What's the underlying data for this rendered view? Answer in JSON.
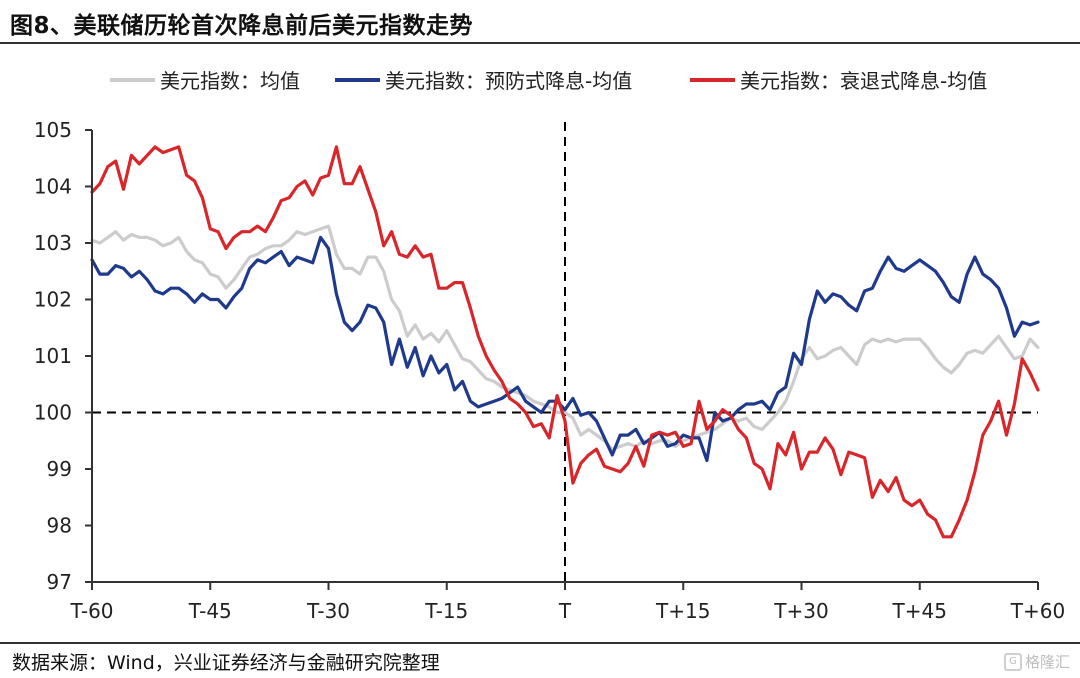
{
  "page": {
    "title": "图8、美联储历轮首次降息前后美元指数走势",
    "source": "数据来源：Wind，兴业证券经济与金融研究院整理",
    "watermark": "格隆汇"
  },
  "chart_data": {
    "type": "line",
    "title": "",
    "xlabel": "",
    "ylabel": "",
    "x_tick_labels": [
      "T-60",
      "T-45",
      "T-30",
      "T-15",
      "T",
      "T+15",
      "T+30",
      "T+45",
      "T+60"
    ],
    "x_tick_values": [
      -60,
      -45,
      -30,
      -15,
      0,
      15,
      30,
      45,
      60
    ],
    "xlim": [
      -60,
      60
    ],
    "ylim": [
      97,
      105
    ],
    "y_ticks": [
      97,
      98,
      99,
      100,
      101,
      102,
      103,
      104,
      105
    ],
    "grid": false,
    "legend_position": "top",
    "reference_lines": [
      {
        "axis": "x",
        "value": 0,
        "style": "dashed",
        "color": "#000000"
      },
      {
        "axis": "y",
        "value": 100,
        "style": "dashed",
        "color": "#000000"
      }
    ],
    "x": [
      -60,
      -59,
      -58,
      -57,
      -56,
      -55,
      -54,
      -53,
      -52,
      -51,
      -50,
      -49,
      -48,
      -47,
      -46,
      -45,
      -44,
      -43,
      -42,
      -41,
      -40,
      -39,
      -38,
      -37,
      -36,
      -35,
      -34,
      -33,
      -32,
      -31,
      -30,
      -29,
      -28,
      -27,
      -26,
      -25,
      -24,
      -23,
      -22,
      -21,
      -20,
      -19,
      -18,
      -17,
      -16,
      -15,
      -14,
      -13,
      -12,
      -11,
      -10,
      -9,
      -8,
      -7,
      -6,
      -5,
      -4,
      -3,
      -2,
      -1,
      0,
      1,
      2,
      3,
      4,
      5,
      6,
      7,
      8,
      9,
      10,
      11,
      12,
      13,
      14,
      15,
      16,
      17,
      18,
      19,
      20,
      21,
      22,
      23,
      24,
      25,
      26,
      27,
      28,
      29,
      30,
      31,
      32,
      33,
      34,
      35,
      36,
      37,
      38,
      39,
      40,
      41,
      42,
      43,
      44,
      45,
      46,
      47,
      48,
      49,
      50,
      51,
      52,
      53,
      54,
      55,
      56,
      57,
      58,
      59,
      60
    ],
    "series": [
      {
        "name": "美元指数：均值",
        "color": "#cccccc",
        "values": [
          103.05,
          103.0,
          103.1,
          103.2,
          103.05,
          103.15,
          103.1,
          103.1,
          103.05,
          102.95,
          103.0,
          103.1,
          102.85,
          102.7,
          102.65,
          102.45,
          102.4,
          102.2,
          102.35,
          102.55,
          102.75,
          102.8,
          102.9,
          102.95,
          102.95,
          103.05,
          103.2,
          103.15,
          103.2,
          103.25,
          103.3,
          102.8,
          102.55,
          102.55,
          102.45,
          102.75,
          102.75,
          102.5,
          102.0,
          101.8,
          101.35,
          101.55,
          101.3,
          101.4,
          101.25,
          101.45,
          101.2,
          100.95,
          100.9,
          100.75,
          100.6,
          100.55,
          100.45,
          100.4,
          100.35,
          100.3,
          100.2,
          100.15,
          100.1,
          100.0,
          100.0,
          99.9,
          99.6,
          99.7,
          99.6,
          99.5,
          99.35,
          99.4,
          99.45,
          99.4,
          99.5,
          99.45,
          99.5,
          99.5,
          99.4,
          99.5,
          99.55,
          99.6,
          99.65,
          99.7,
          99.8,
          99.9,
          99.85,
          99.9,
          99.75,
          99.7,
          99.85,
          100.0,
          100.2,
          100.55,
          100.95,
          101.15,
          100.95,
          101.0,
          101.1,
          101.15,
          101.0,
          100.85,
          101.2,
          101.3,
          101.25,
          101.3,
          101.25,
          101.3,
          101.3,
          101.3,
          101.15,
          100.95,
          100.8,
          100.7,
          100.85,
          101.05,
          101.1,
          101.05,
          101.2,
          101.35,
          101.15,
          100.95,
          101.0,
          101.3,
          101.15
        ]
      },
      {
        "name": "美元指数：预防式降息-均值",
        "color": "#1f3a8c",
        "values": [
          102.7,
          102.45,
          102.45,
          102.6,
          102.55,
          102.4,
          102.5,
          102.35,
          102.15,
          102.1,
          102.2,
          102.2,
          102.1,
          101.95,
          102.1,
          102.0,
          102.0,
          101.85,
          102.05,
          102.2,
          102.55,
          102.7,
          102.65,
          102.75,
          102.85,
          102.6,
          102.75,
          102.7,
          102.65,
          103.1,
          102.9,
          102.1,
          101.6,
          101.45,
          101.6,
          101.9,
          101.85,
          101.6,
          100.85,
          101.3,
          100.8,
          101.15,
          100.65,
          101.0,
          100.7,
          100.85,
          100.4,
          100.55,
          100.2,
          100.1,
          100.15,
          100.2,
          100.25,
          100.35,
          100.45,
          100.2,
          100.1,
          100.0,
          100.2,
          100.2,
          100.05,
          100.25,
          99.95,
          100.0,
          99.85,
          99.55,
          99.25,
          99.6,
          99.6,
          99.7,
          99.45,
          99.55,
          99.65,
          99.4,
          99.45,
          99.6,
          99.55,
          99.55,
          99.15,
          100.0,
          99.85,
          99.9,
          100.05,
          100.15,
          100.15,
          100.2,
          100.05,
          100.35,
          100.45,
          101.05,
          100.85,
          101.65,
          102.15,
          101.95,
          102.1,
          102.05,
          101.9,
          101.8,
          102.15,
          102.2,
          102.5,
          102.75,
          102.55,
          102.5,
          102.6,
          102.7,
          102.6,
          102.5,
          102.3,
          102.05,
          101.95,
          102.45,
          102.75,
          102.45,
          102.35,
          102.2,
          101.85,
          101.35,
          101.6,
          101.55,
          101.6
        ]
      },
      {
        "name": "美元指数：衰退式降息-均值",
        "color": "#d9262b",
        "values": [
          103.9,
          104.05,
          104.35,
          104.45,
          103.95,
          104.55,
          104.4,
          104.55,
          104.7,
          104.6,
          104.65,
          104.7,
          104.2,
          104.1,
          103.8,
          103.25,
          103.2,
          102.9,
          103.1,
          103.2,
          103.2,
          103.3,
          103.2,
          103.45,
          103.75,
          103.8,
          104.0,
          104.1,
          103.85,
          104.15,
          104.2,
          104.7,
          104.05,
          104.05,
          104.35,
          103.95,
          103.55,
          102.95,
          103.2,
          102.8,
          102.75,
          102.95,
          102.75,
          102.8,
          102.2,
          102.2,
          102.3,
          102.3,
          101.85,
          101.35,
          101.0,
          100.75,
          100.55,
          100.25,
          100.15,
          100.0,
          99.75,
          99.8,
          99.55,
          100.3,
          99.85,
          98.75,
          99.1,
          99.25,
          99.35,
          99.05,
          99.0,
          98.95,
          99.1,
          99.4,
          99.05,
          99.6,
          99.65,
          99.6,
          99.65,
          99.4,
          99.45,
          100.2,
          99.7,
          99.85,
          100.05,
          99.95,
          99.7,
          99.55,
          99.1,
          99.0,
          98.65,
          99.45,
          99.25,
          99.65,
          99.0,
          99.3,
          99.3,
          99.55,
          99.35,
          98.9,
          99.3,
          99.25,
          99.2,
          98.5,
          98.8,
          98.6,
          98.85,
          98.45,
          98.35,
          98.45,
          98.2,
          98.1,
          97.8,
          97.8,
          98.1,
          98.45,
          98.95,
          99.6,
          99.85,
          100.2,
          99.6,
          100.15,
          100.95,
          100.7,
          100.4
        ]
      }
    ]
  }
}
